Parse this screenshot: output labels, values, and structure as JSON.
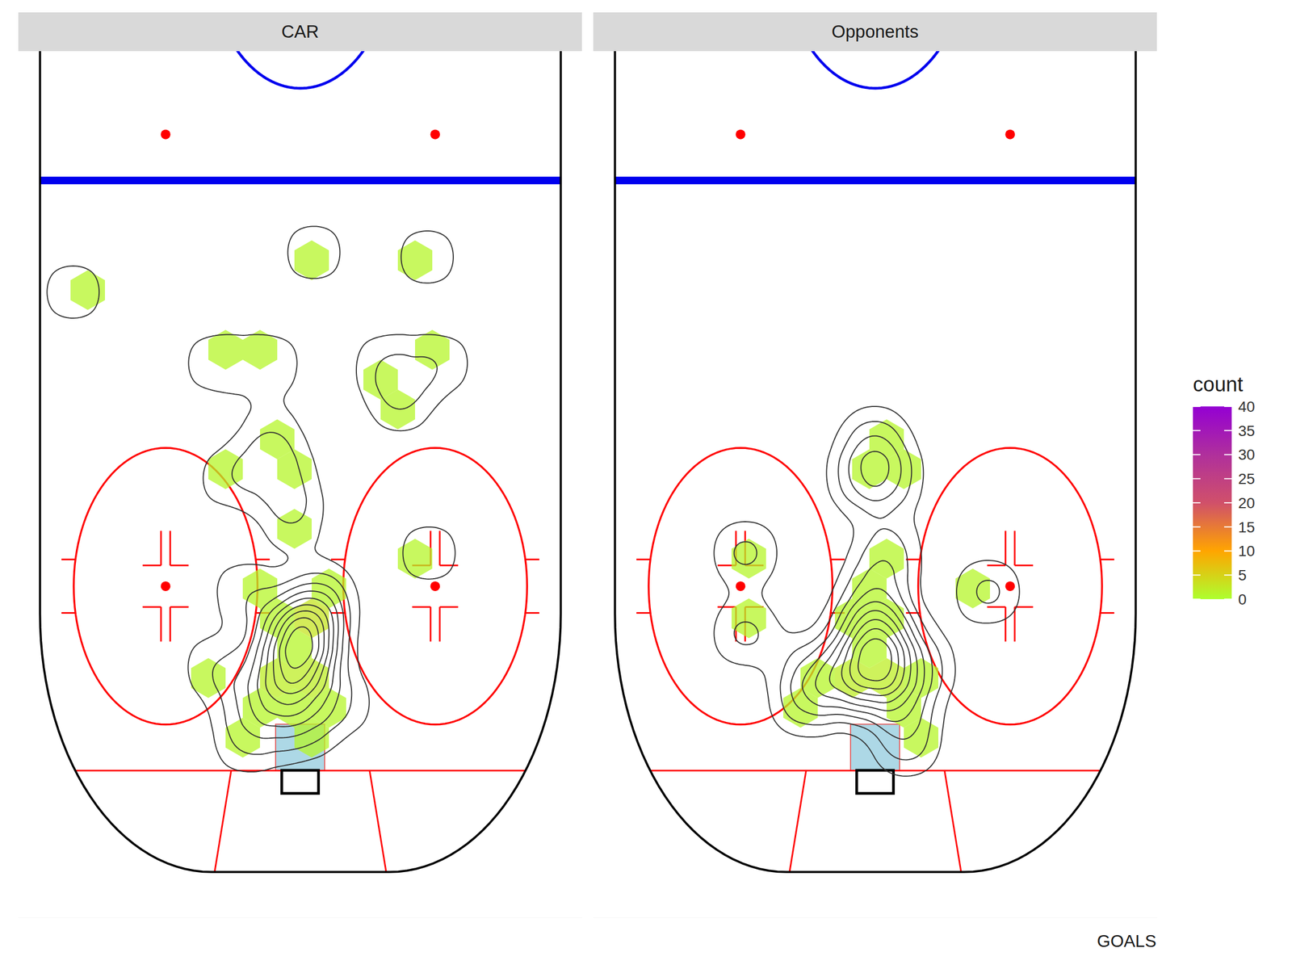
{
  "chart_data": {
    "type": "hexbin",
    "caption": "GOALS",
    "tick_labels": false,
    "xlim": [
      -46,
      46
    ],
    "ylim": [
      11,
      105
    ],
    "series": [
      {
        "name": "CAR",
        "points": [
          [
            -37.1,
            37.1
          ],
          [
            2.2,
            32.8
          ],
          [
            20.7,
            33.3
          ],
          [
            -14.0,
            44.8
          ],
          [
            -4.8,
            44.8
          ],
          [
            13.8,
            44.8
          ],
          [
            23.0,
            44.8
          ],
          [
            16.3,
            49.3
          ],
          [
            -4.8,
            52.9
          ],
          [
            -11.6,
            57.3
          ],
          [
            -2.6,
            57.3
          ],
          [
            -1.2,
            61.8
          ],
          [
            21.0,
            65.4
          ],
          [
            -9.3,
            69.6
          ],
          [
            3.5,
            69.6
          ],
          [
            -2.6,
            73.7
          ],
          [
            1.5,
            74.1
          ],
          [
            1.5,
            74.1
          ],
          [
            -14.0,
            77.7
          ],
          [
            -4.6,
            77.7
          ],
          [
            0.8,
            77.7
          ],
          [
            6.9,
            81.7
          ],
          [
            -8.6,
            81.7
          ],
          [
            -2.6,
            81.7
          ],
          [
            -8.9,
            86.2
          ],
          [
            0.1,
            84.8
          ],
          [
            -1.0,
            75.0
          ],
          [
            1.0,
            78.0
          ],
          [
            -2.0,
            80.0
          ],
          [
            2.0,
            72.0
          ]
        ]
      },
      {
        "name": "Opponents",
        "points": [
          [
            -0.1,
            52.9
          ],
          [
            -2.4,
            57.4
          ],
          [
            2.3,
            57.4
          ],
          [
            -21.2,
            65.4
          ],
          [
            2.0,
            65.2
          ],
          [
            -0.1,
            69.6
          ],
          [
            18.4,
            69.6
          ],
          [
            -2.4,
            73.7
          ],
          [
            -21.2,
            74.1
          ],
          [
            2.3,
            73.7
          ],
          [
            -9.8,
            77.7
          ],
          [
            -0.4,
            77.7
          ],
          [
            7.7,
            77.7
          ],
          [
            -11.8,
            81.7
          ],
          [
            -5.8,
            79.9
          ],
          [
            4.3,
            81.7
          ],
          [
            5.0,
            86.2
          ],
          [
            0.0,
            75.0
          ],
          [
            1.0,
            78.0
          ],
          [
            -1.0,
            80.0
          ]
        ]
      }
    ],
    "colorbar": {
      "title": "count",
      "range": [
        0,
        40
      ],
      "ticks": [
        0,
        5,
        10,
        15,
        20,
        25,
        30,
        35,
        40
      ],
      "colors": [
        "#adff2f",
        "#ffa500",
        "#d0506a",
        "#b0309c",
        "#9400d3"
      ]
    }
  }
}
